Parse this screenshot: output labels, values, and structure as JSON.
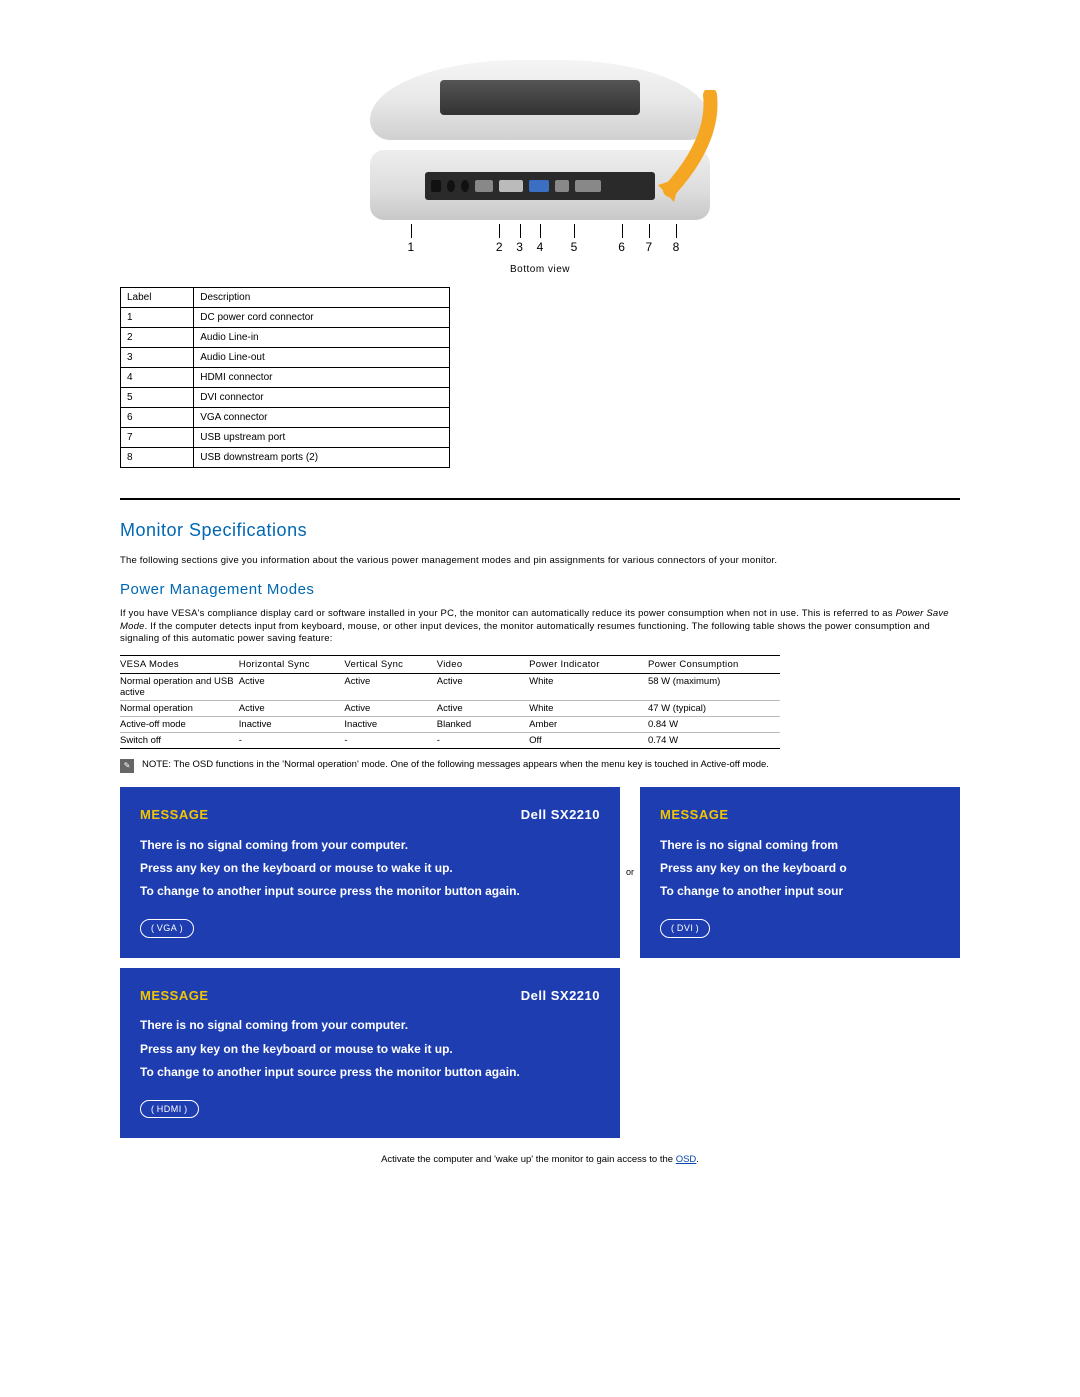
{
  "colors": {
    "heading": "#0067b3",
    "msgBg": "#1d3db1",
    "msgYellow": "#f2c500",
    "link": "#0645ad"
  },
  "diagram": {
    "caption": "Bottom view",
    "port_positions_pct": [
      12,
      38,
      44,
      50,
      60,
      74,
      82,
      90
    ],
    "port_numbers": [
      "1",
      "2",
      "3",
      "4",
      "5",
      "6",
      "7",
      "8"
    ]
  },
  "label_table": {
    "headers": [
      "Label",
      "Description"
    ],
    "rows": [
      [
        "1",
        "DC power cord connector"
      ],
      [
        "2",
        "Audio Line-in"
      ],
      [
        "3",
        "Audio Line-out"
      ],
      [
        "4",
        "HDMI connector"
      ],
      [
        "5",
        "DVI connector"
      ],
      [
        "6",
        "VGA connector"
      ],
      [
        "7",
        "USB upstream port"
      ],
      [
        "8",
        "USB downstream ports (2)"
      ]
    ]
  },
  "section_title": "Monitor Specifications",
  "intro_text": "The following sections give you information about the various power management modes and pin assignments for various connectors of your monitor.",
  "subsection_title": "Power Management Modes",
  "power_para_pre": "If you have VESA's compliance display card or software installed in your PC, the monitor can automatically reduce its power consumption when not in use. This is referred to as ",
  "power_para_em": "Power Save Mode",
  "power_para_post": ". If the computer detects input from keyboard, mouse, or other input devices, the monitor automatically resumes functioning. The following table shows the power consumption and signaling of this automatic power saving feature:",
  "power_table": {
    "headers": [
      "VESA Modes",
      "Horizontal Sync",
      "Vertical Sync",
      "Video",
      "Power Indicator",
      "Power Consumption"
    ],
    "col_widths_pct": [
      18,
      16,
      14,
      14,
      18,
      20
    ],
    "rows": [
      [
        "Normal operation and USB active",
        "Active",
        "Active",
        "Active",
        "White",
        "58 W (maximum)"
      ],
      [
        "Normal operation",
        "Active",
        "Active",
        "Active",
        "White",
        "47 W (typical)"
      ],
      [
        "Active-off mode",
        "Inactive",
        "Inactive",
        "Blanked",
        "Amber",
        "0.84 W"
      ],
      [
        "Switch off",
        "-",
        "-",
        "-",
        "Off",
        "0.74 W"
      ]
    ]
  },
  "note_text": "NOTE: The OSD functions in the 'Normal operation' mode. One of the following messages appears when the menu key is touched in Active-off mode.",
  "msg": {
    "title": "MESSAGE",
    "model": "Dell SX2210",
    "line1": "There is no signal coming from your computer.",
    "line2": "Press any key on the keyboard or mouse to wake it up.",
    "line3": "To change to another input source press the monitor button again.",
    "line1_cut": "There is no signal coming from",
    "line2_cut": "Press any key on the keyboard o",
    "line3_cut": "To change to another input sour",
    "or": "or",
    "badge_vga": "( VGA )",
    "badge_hdmi": "( HDMI )",
    "badge_dvi": "( DVI )"
  },
  "footer_pre": "Activate the computer and 'wake up' the monitor to gain access to the ",
  "footer_link": "OSD",
  "footer_post": "."
}
